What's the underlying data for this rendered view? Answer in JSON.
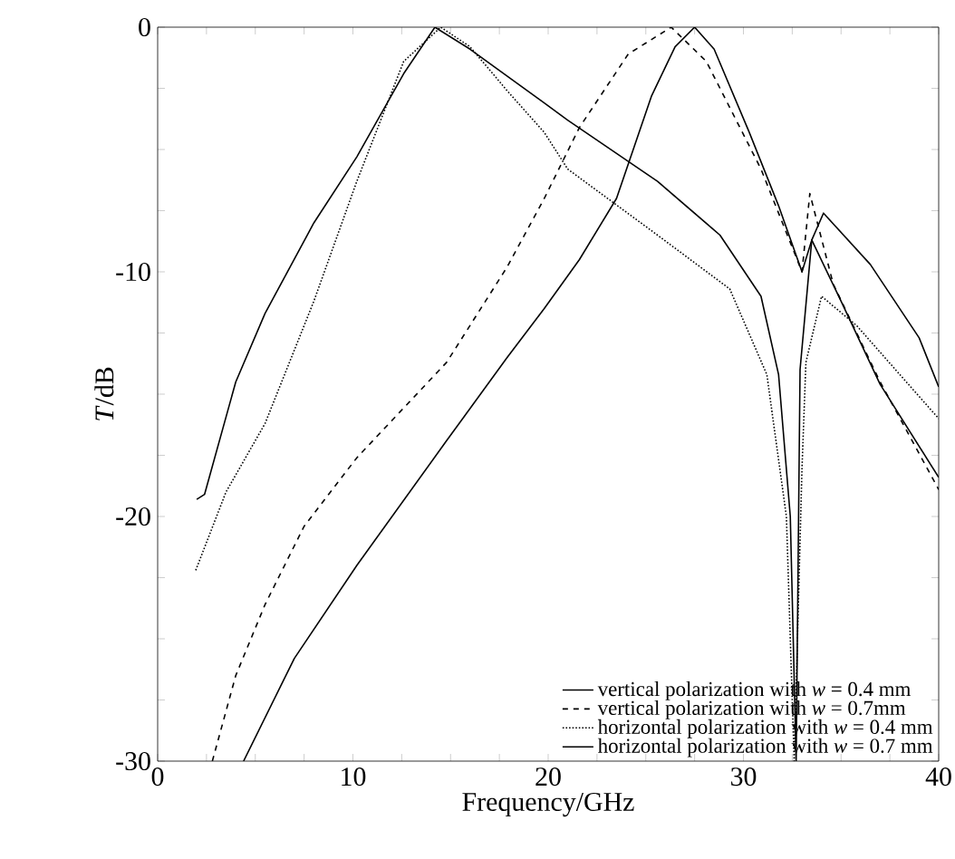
{
  "chart_data": {
    "type": "line",
    "xlabel": "Frequency/GHz",
    "ylabel": "*T*/dB",
    "xlim": [
      0,
      40
    ],
    "ylim": [
      -30,
      0
    ],
    "xticks": [
      0,
      {
        "value": 2.5,
        "label": null
      },
      {
        "value": 5,
        "label": null
      },
      {
        "value": 7.5,
        "label": null
      },
      10,
      {
        "value": 12.5,
        "label": null
      },
      {
        "value": 15,
        "label": null
      },
      {
        "value": 17.5,
        "label": null
      },
      20,
      {
        "value": 22.5,
        "label": null
      },
      {
        "value": 25,
        "label": null
      },
      {
        "value": 27.5,
        "label": null
      },
      30,
      {
        "value": 32.5,
        "label": null
      },
      {
        "value": 35,
        "label": null
      },
      {
        "value": 37.5,
        "label": null
      },
      40
    ],
    "yticks": [
      -30,
      {
        "value": -27.5,
        "label": null
      },
      {
        "value": -25,
        "label": null
      },
      {
        "value": -22.5,
        "label": null
      },
      -20,
      {
        "value": -17.5,
        "label": null
      },
      {
        "value": -15,
        "label": null
      },
      {
        "value": -12.5,
        "label": null
      },
      -10,
      {
        "value": -7.5,
        "label": null
      },
      {
        "value": -5,
        "label": null
      },
      {
        "value": -2.5,
        "label": null
      },
      0
    ],
    "legend": "bottom right",
    "grid": false,
    "marker": "none",
    "series": [
      {
        "name": "vertical polarization with *w* = 0.4 mm",
        "color": "#000000",
        "line_style": "solid",
        "x": [
          4.4,
          7,
          10.2,
          14.8,
          17.9,
          19.8,
          21.6,
          23.5,
          25.3,
          26.5,
          27.5,
          28.5,
          30.3,
          31.8,
          33.0,
          33.5,
          35,
          37,
          40
        ],
        "values": [
          -30,
          -25.8,
          -22.0,
          -16.9,
          -13.5,
          -11.5,
          -9.5,
          -7.0,
          -2.8,
          -0.8,
          0,
          -0.9,
          -4.3,
          -7.3,
          -10,
          -8.7,
          -11.2,
          -14.6,
          -18.4
        ]
      },
      {
        "name": "vertical polarization with *w* = 0.7mm",
        "color": "#000000",
        "line_style": "dashed",
        "x": [
          2.8,
          4,
          5.5,
          7.5,
          10.2,
          14.8,
          17.9,
          19.8,
          21.6,
          24.1,
          26.3,
          28.1,
          30.9,
          33.0,
          33.4,
          34.6,
          37,
          40
        ],
        "values": [
          -30,
          -26.5,
          -23.6,
          -20.4,
          -17.6,
          -13.7,
          -9.8,
          -7.0,
          -4.1,
          -1.1,
          0,
          -1.4,
          -5.8,
          -10,
          -6.8,
          -10.5,
          -14.5,
          -18.9
        ]
      },
      {
        "name": "horizontal polarization with *w* = 0.4 mm",
        "color": "#000000",
        "line_style": "dotted",
        "x": [
          1.95,
          3.5,
          5.5,
          8,
          10.2,
          12.6,
          14.5,
          16,
          17.9,
          19.8,
          21,
          25.6,
          29.3,
          31.2,
          32.2,
          32.6,
          33.0,
          33.2,
          34,
          35.8,
          40
        ],
        "values": [
          -22.2,
          -19.0,
          -16.2,
          -11.2,
          -6.3,
          -1.4,
          0,
          -0.8,
          -2.6,
          -4.3,
          -5.8,
          -8.5,
          -10.7,
          -14.2,
          -20,
          -30,
          -18,
          -13.7,
          -11,
          -12.2,
          -16
        ]
      },
      {
        "name": "horizontal polarization with *w* = 0.7 mm",
        "color": "#000000",
        "line_style": "solid",
        "x": [
          2,
          2.4,
          4,
          5.5,
          8,
          10.2,
          12.6,
          14.2,
          16,
          19.8,
          21,
          25.6,
          28.8,
          30.9,
          31.8,
          32.4,
          32.7,
          32.9,
          33.5,
          34.1,
          36.5,
          39,
          40
        ],
        "values": [
          -19.3,
          -19.1,
          -14.5,
          -11.7,
          -8,
          -5.3,
          -1.9,
          0,
          -0.9,
          -3.1,
          -3.8,
          -6.3,
          -8.5,
          -11,
          -14.2,
          -20,
          -30,
          -14,
          -8.7,
          -7.6,
          -9.7,
          -12.7,
          -14.7
        ]
      }
    ]
  }
}
